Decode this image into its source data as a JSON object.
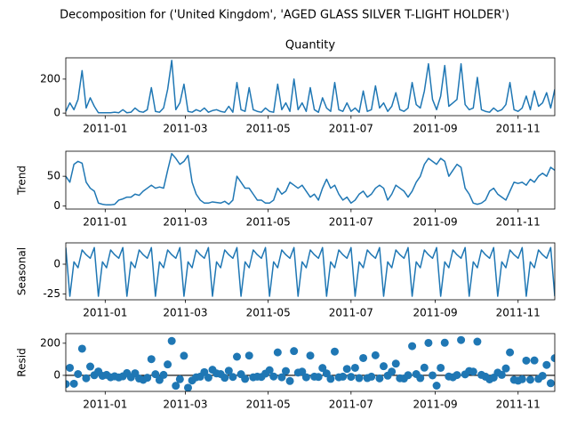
{
  "title": "Decomposition for ('United Kingdom', 'AGED GLASS SILVER T-LIGHT HOLDER')",
  "chart_data": [
    {
      "type": "line",
      "title": "Quantity",
      "color": "#1f77b4",
      "x": [
        -29,
        -26,
        -23,
        -20,
        -17,
        -14,
        -11,
        -8,
        -5,
        -2,
        1,
        4,
        7,
        10,
        13,
        16,
        19,
        22,
        25,
        28,
        31,
        34,
        37,
        40,
        43,
        46,
        49,
        52,
        55,
        58,
        61,
        64,
        67,
        70,
        73,
        76,
        79,
        82,
        85,
        88,
        91,
        94,
        97,
        100,
        103,
        106,
        109,
        112,
        115,
        118,
        121,
        124,
        127,
        130,
        133,
        136,
        139,
        142,
        145,
        148,
        151,
        154,
        157,
        160,
        163,
        166,
        169,
        172,
        175,
        178,
        181,
        184,
        187,
        190,
        193,
        196,
        199,
        202,
        205,
        208,
        211,
        214,
        217,
        220,
        223,
        226,
        229,
        232,
        235,
        238,
        241,
        244,
        247,
        250,
        253,
        256,
        259,
        262,
        265,
        268,
        271,
        274,
        277,
        280,
        283,
        286,
        289,
        292,
        295,
        298,
        301,
        304,
        307,
        310,
        313,
        316,
        319,
        322,
        325,
        328,
        331
      ],
      "values": [
        10,
        60,
        20,
        80,
        250,
        30,
        90,
        40,
        2,
        2,
        2,
        2,
        5,
        2,
        20,
        2,
        5,
        30,
        10,
        5,
        20,
        150,
        10,
        5,
        30,
        140,
        310,
        20,
        60,
        170,
        10,
        5,
        20,
        10,
        30,
        5,
        15,
        20,
        10,
        5,
        40,
        5,
        180,
        20,
        10,
        150,
        20,
        10,
        5,
        30,
        10,
        5,
        170,
        20,
        60,
        10,
        200,
        20,
        60,
        10,
        150,
        20,
        5,
        90,
        30,
        10,
        180,
        20,
        10,
        60,
        10,
        30,
        5,
        130,
        10,
        20,
        160,
        30,
        60,
        10,
        40,
        120,
        20,
        10,
        30,
        180,
        50,
        30,
        130,
        290,
        80,
        20,
        100,
        280,
        40,
        60,
        80,
        290,
        50,
        20,
        30,
        210,
        20,
        10,
        5,
        30,
        10,
        20,
        50,
        180,
        20,
        10,
        30,
        100,
        20,
        130,
        40,
        60,
        120,
        30,
        140
      ],
      "xlim": [
        -29,
        331
      ],
      "xticks": [
        {
          "value": 0,
          "label": "2011-01"
        },
        {
          "value": 59,
          "label": "2011-03"
        },
        {
          "value": 120,
          "label": "2011-05"
        },
        {
          "value": 181,
          "label": "2011-07"
        },
        {
          "value": 243,
          "label": "2011-09"
        },
        {
          "value": 304,
          "label": "2011-11"
        }
      ],
      "ylim": [
        -15,
        325
      ],
      "yticks": [
        0,
        200
      ]
    },
    {
      "type": "line",
      "ylabel": "Trend",
      "color": "#1f77b4",
      "x": [
        -29,
        -26,
        -23,
        -20,
        -17,
        -14,
        -11,
        -8,
        -5,
        -2,
        1,
        4,
        7,
        10,
        13,
        16,
        19,
        22,
        25,
        28,
        31,
        34,
        37,
        40,
        43,
        46,
        49,
        52,
        55,
        58,
        61,
        64,
        67,
        70,
        73,
        76,
        79,
        82,
        85,
        88,
        91,
        94,
        97,
        100,
        103,
        106,
        109,
        112,
        115,
        118,
        121,
        124,
        127,
        130,
        133,
        136,
        139,
        142,
        145,
        148,
        151,
        154,
        157,
        160,
        163,
        166,
        169,
        172,
        175,
        178,
        181,
        184,
        187,
        190,
        193,
        196,
        199,
        202,
        205,
        208,
        211,
        214,
        217,
        220,
        223,
        226,
        229,
        232,
        235,
        238,
        241,
        244,
        247,
        250,
        253,
        256,
        259,
        262,
        265,
        268,
        271,
        274,
        277,
        280,
        283,
        286,
        289,
        292,
        295,
        298,
        301,
        304,
        307,
        310,
        313,
        316,
        319,
        322,
        325,
        328,
        331
      ],
      "values": [
        50,
        40,
        70,
        75,
        72,
        40,
        30,
        25,
        5,
        3,
        2,
        2,
        3,
        10,
        12,
        15,
        15,
        20,
        18,
        25,
        30,
        35,
        30,
        32,
        30,
        60,
        88,
        80,
        70,
        75,
        85,
        40,
        20,
        10,
        5,
        5,
        7,
        6,
        5,
        8,
        3,
        10,
        50,
        40,
        30,
        30,
        20,
        10,
        10,
        5,
        5,
        10,
        30,
        20,
        25,
        40,
        35,
        30,
        35,
        25,
        15,
        20,
        10,
        30,
        45,
        30,
        35,
        20,
        10,
        15,
        5,
        10,
        20,
        25,
        15,
        20,
        30,
        35,
        30,
        10,
        20,
        35,
        30,
        25,
        15,
        25,
        40,
        50,
        70,
        80,
        75,
        70,
        80,
        75,
        50,
        60,
        70,
        65,
        30,
        20,
        5,
        3,
        5,
        10,
        25,
        30,
        20,
        15,
        10,
        25,
        40,
        38,
        40,
        35,
        45,
        40,
        50,
        55,
        50,
        65,
        60
      ],
      "xlim": [
        -29,
        331
      ],
      "xticks": [
        {
          "value": 0,
          "label": "2011-01"
        },
        {
          "value": 59,
          "label": "2011-03"
        },
        {
          "value": 120,
          "label": "2011-05"
        },
        {
          "value": 181,
          "label": "2011-07"
        },
        {
          "value": 243,
          "label": "2011-09"
        },
        {
          "value": 304,
          "label": "2011-11"
        }
      ],
      "ylim": [
        -5,
        92
      ],
      "yticks": [
        0,
        50
      ]
    },
    {
      "type": "line",
      "ylabel": "Seasonal",
      "color": "#1f77b4",
      "x": [
        -29,
        -26,
        -23,
        -20,
        -17,
        -14,
        -11,
        -8,
        -5,
        -2,
        1,
        4,
        7,
        10,
        13,
        16,
        19,
        22,
        25,
        28,
        31,
        34,
        37,
        40,
        43,
        46,
        49,
        52,
        55,
        58,
        61,
        64,
        67,
        70,
        73,
        76,
        79,
        82,
        85,
        88,
        91,
        94,
        97,
        100,
        103,
        106,
        109,
        112,
        115,
        118,
        121,
        124,
        127,
        130,
        133,
        136,
        139,
        142,
        145,
        148,
        151,
        154,
        157,
        160,
        163,
        166,
        169,
        172,
        175,
        178,
        181,
        184,
        187,
        190,
        193,
        196,
        199,
        202,
        205,
        208,
        211,
        214,
        217,
        220,
        223,
        226,
        229,
        232,
        235,
        238,
        241,
        244,
        247,
        250,
        253,
        256,
        259,
        262,
        265,
        268,
        271,
        274,
        277,
        280,
        283,
        286,
        289,
        292,
        295,
        298,
        301,
        304,
        307,
        310,
        313,
        316,
        319,
        322,
        325,
        328,
        331
      ],
      "values": [
        14,
        -27,
        2,
        -3,
        12,
        8,
        5,
        14,
        -27,
        2,
        -3,
        12,
        8,
        5,
        14,
        -27,
        2,
        -3,
        12,
        8,
        5,
        14,
        -27,
        2,
        -3,
        12,
        8,
        5,
        14,
        -27,
        2,
        -3,
        12,
        8,
        5,
        14,
        -27,
        2,
        -3,
        12,
        8,
        5,
        14,
        -27,
        2,
        -3,
        12,
        8,
        5,
        14,
        -27,
        2,
        -3,
        12,
        8,
        5,
        14,
        -27,
        2,
        -3,
        12,
        8,
        5,
        14,
        -27,
        2,
        -3,
        12,
        8,
        5,
        14,
        -27,
        2,
        -3,
        12,
        8,
        5,
        14,
        -27,
        2,
        -3,
        12,
        8,
        5,
        14,
        -27,
        2,
        -3,
        12,
        8,
        5,
        14,
        -27,
        2,
        -3,
        12,
        8,
        5,
        14,
        -27,
        2,
        -3,
        12,
        8,
        5,
        14,
        -27,
        2,
        -3,
        12,
        8,
        5,
        14,
        -27,
        2,
        -3,
        12,
        8,
        5,
        14,
        -27
      ],
      "xlim": [
        -29,
        331
      ],
      "xticks": [
        {
          "value": 0,
          "label": "2011-01"
        },
        {
          "value": 59,
          "label": "2011-03"
        },
        {
          "value": 120,
          "label": "2011-05"
        },
        {
          "value": 181,
          "label": "2011-07"
        },
        {
          "value": 243,
          "label": "2011-09"
        },
        {
          "value": 304,
          "label": "2011-11"
        }
      ],
      "ylim": [
        -30,
        18
      ],
      "yticks": [
        -25,
        0
      ]
    },
    {
      "type": "scatter",
      "ylabel": "Resid",
      "color": "#1f77b4",
      "zero_line": true,
      "x": [
        -29,
        -26,
        -23,
        -20,
        -17,
        -14,
        -11,
        -8,
        -5,
        -2,
        1,
        4,
        7,
        10,
        13,
        16,
        19,
        22,
        25,
        28,
        31,
        34,
        37,
        40,
        43,
        46,
        49,
        52,
        55,
        58,
        61,
        64,
        67,
        70,
        73,
        76,
        79,
        82,
        85,
        88,
        91,
        94,
        97,
        100,
        103,
        106,
        109,
        112,
        115,
        118,
        121,
        124,
        127,
        130,
        133,
        136,
        139,
        142,
        145,
        148,
        151,
        154,
        157,
        160,
        163,
        166,
        169,
        172,
        175,
        178,
        181,
        184,
        187,
        190,
        193,
        196,
        199,
        202,
        205,
        208,
        211,
        214,
        217,
        220,
        223,
        226,
        229,
        232,
        235,
        238,
        241,
        244,
        247,
        250,
        253,
        256,
        259,
        262,
        265,
        268,
        271,
        274,
        277,
        280,
        283,
        286,
        289,
        292,
        295,
        298,
        301,
        304,
        307,
        310,
        313,
        316,
        319,
        322,
        325,
        328,
        331
      ],
      "values": [
        -54,
        47,
        -52,
        8,
        166,
        -18,
        55,
        1,
        24,
        -3,
        3,
        -12,
        -6,
        -13,
        -6,
        14,
        -12,
        13,
        -20,
        -28,
        -15,
        101,
        7,
        -29,
        3,
        68,
        214,
        -65,
        -24,
        122,
        -77,
        -32,
        -12,
        -8,
        20,
        -14,
        35,
        12,
        8,
        -15,
        29,
        -10,
        116,
        7,
        -22,
        123,
        -12,
        -8,
        -10,
        11,
        32,
        -7,
        143,
        -12,
        27,
        -35,
        151,
        17,
        23,
        -12,
        123,
        -8,
        -10,
        46,
        12,
        -22,
        148,
        -12,
        -8,
        40,
        -9,
        47,
        -17,
        108,
        -17,
        -8,
        125,
        -19,
        57,
        -2,
        23,
        73,
        -18,
        -20,
        1,
        182,
        8,
        -17,
        48,
        202,
        0,
        -64,
        47,
        203,
        -7,
        -12,
        2,
        220,
        6,
        27,
        23,
        210,
        3,
        -8,
        -25,
        -14,
        17,
        3,
        43,
        143,
        -28,
        -33,
        -24,
        92,
        -27,
        93,
        -22,
        -3,
        65,
        -49,
        107
      ],
      "xlim": [
        -29,
        331
      ],
      "xticks": [
        {
          "value": 0,
          "label": "2011-01"
        },
        {
          "value": 59,
          "label": "2011-03"
        },
        {
          "value": 120,
          "label": "2011-05"
        },
        {
          "value": 181,
          "label": "2011-07"
        },
        {
          "value": 243,
          "label": "2011-09"
        },
        {
          "value": 304,
          "label": "2011-11"
        }
      ],
      "ylim": [
        -100,
        260
      ],
      "yticks": [
        0,
        200
      ]
    }
  ]
}
